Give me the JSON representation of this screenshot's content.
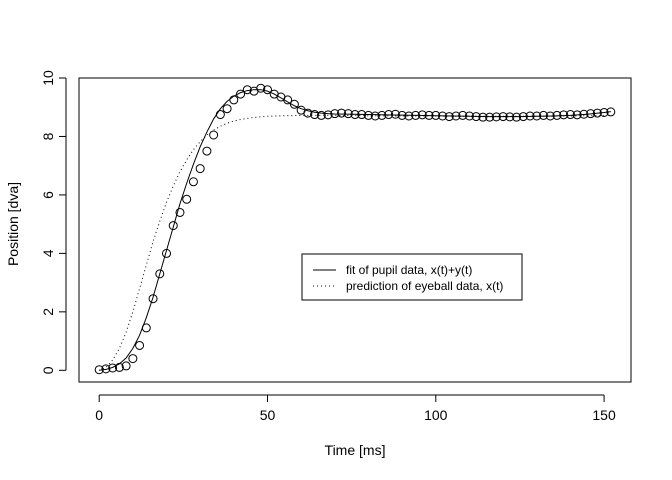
{
  "chart_data": {
    "type": "line",
    "title": "",
    "xlabel": "Time [ms]",
    "ylabel": "Position [dva]",
    "xlim": [
      -6,
      158
    ],
    "ylim": [
      -0.4,
      10.0
    ],
    "xticks": [
      0,
      50,
      100,
      150
    ],
    "yticks": [
      0,
      2,
      4,
      6,
      8,
      10
    ],
    "grid": false,
    "legend_position": "center-right",
    "series": [
      {
        "name": "fit of pupil data, x(t)+y(t)",
        "style": "solid",
        "color": "#000000",
        "x": [
          0,
          2,
          4,
          6,
          8,
          10,
          12,
          14,
          16,
          18,
          20,
          22,
          24,
          26,
          28,
          30,
          32,
          34,
          36,
          38,
          40,
          42,
          44,
          46,
          48,
          50,
          52,
          54,
          56,
          58,
          60,
          62,
          64,
          66,
          68,
          70,
          75,
          80,
          85,
          90,
          95,
          100,
          105,
          110,
          115,
          120,
          125,
          130,
          135,
          140,
          145,
          150,
          152
        ],
        "y": [
          0.0,
          0.03,
          0.1,
          0.22,
          0.42,
          0.75,
          1.2,
          1.8,
          2.5,
          3.3,
          4.1,
          4.9,
          5.7,
          6.4,
          7.05,
          7.65,
          8.15,
          8.6,
          8.95,
          9.2,
          9.38,
          9.5,
          9.57,
          9.6,
          9.6,
          9.55,
          9.45,
          9.32,
          9.18,
          9.05,
          8.95,
          8.88,
          8.83,
          8.8,
          8.78,
          8.77,
          8.76,
          8.75,
          8.74,
          8.73,
          8.72,
          8.71,
          8.7,
          8.69,
          8.68,
          8.68,
          8.68,
          8.69,
          8.7,
          8.72,
          8.76,
          8.82,
          8.85
        ]
      },
      {
        "name": "prediction of eyeball data, x(t)",
        "style": "dotted",
        "color": "#000000",
        "x": [
          0,
          2,
          4,
          6,
          8,
          10,
          12,
          14,
          16,
          18,
          20,
          22,
          24,
          26,
          28,
          30,
          32,
          34,
          36,
          38,
          40,
          42,
          44,
          46,
          48,
          50,
          55,
          60,
          65,
          70,
          80,
          90,
          100,
          110,
          120,
          130,
          140,
          150
        ],
        "y": [
          0.0,
          0.1,
          0.35,
          0.75,
          1.3,
          2.0,
          2.8,
          3.6,
          4.4,
          5.1,
          5.75,
          6.3,
          6.8,
          7.2,
          7.55,
          7.82,
          8.05,
          8.22,
          8.35,
          8.45,
          8.53,
          8.58,
          8.62,
          8.65,
          8.67,
          8.69,
          8.71,
          8.72,
          8.72,
          8.72,
          8.71,
          8.7,
          8.7,
          8.69,
          8.69,
          8.69,
          8.7,
          8.72
        ]
      }
    ],
    "points": {
      "name": "pupil data",
      "x": [
        0,
        2,
        4,
        6,
        8,
        10,
        12,
        14,
        16,
        18,
        20,
        22,
        24,
        26,
        28,
        30,
        32,
        34,
        36,
        38,
        40,
        42,
        44,
        46,
        48,
        50,
        52,
        54,
        56,
        58,
        60,
        62,
        64,
        66,
        68,
        70,
        72,
        74,
        76,
        78,
        80,
        82,
        84,
        86,
        88,
        90,
        92,
        94,
        96,
        98,
        100,
        102,
        104,
        106,
        108,
        110,
        112,
        114,
        116,
        118,
        120,
        122,
        124,
        126,
        128,
        130,
        132,
        134,
        136,
        138,
        140,
        142,
        144,
        146,
        148,
        150,
        152
      ],
      "y": [
        0.02,
        0.05,
        0.08,
        0.1,
        0.15,
        0.4,
        0.85,
        1.45,
        2.45,
        3.3,
        4.0,
        4.95,
        5.4,
        5.85,
        6.45,
        6.9,
        7.5,
        8.05,
        8.75,
        8.95,
        9.25,
        9.45,
        9.6,
        9.55,
        9.65,
        9.6,
        9.45,
        9.35,
        9.25,
        9.1,
        8.9,
        8.8,
        8.75,
        8.72,
        8.74,
        8.78,
        8.8,
        8.78,
        8.75,
        8.75,
        8.72,
        8.7,
        8.72,
        8.75,
        8.76,
        8.72,
        8.7,
        8.72,
        8.74,
        8.72,
        8.72,
        8.7,
        8.68,
        8.7,
        8.72,
        8.7,
        8.68,
        8.66,
        8.66,
        8.67,
        8.68,
        8.67,
        8.66,
        8.68,
        8.7,
        8.7,
        8.72,
        8.7,
        8.72,
        8.74,
        8.75,
        8.74,
        8.76,
        8.78,
        8.8,
        8.82,
        8.84
      ]
    }
  }
}
